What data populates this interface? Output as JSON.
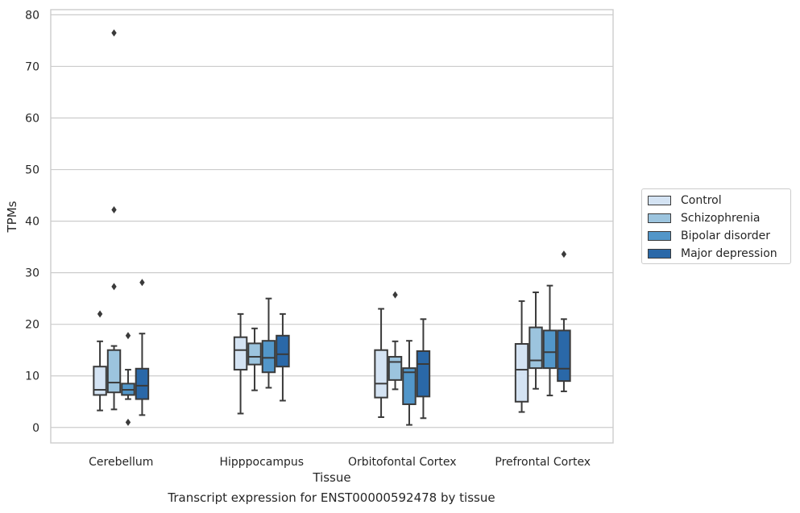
{
  "chart_data": {
    "type": "box",
    "title": "",
    "caption": "Transcript expression for ENST00000592478 by tissue",
    "xlabel": "Tissue",
    "ylabel": "TPMs",
    "ylim": [
      -3,
      81
    ],
    "yticks": [
      0,
      10,
      20,
      30,
      40,
      50,
      60,
      70,
      80
    ],
    "grid": "y",
    "legend_position": "right",
    "categories": [
      "Cerebellum",
      "Hipppocampus",
      "Orbitofontal Cortex",
      "Prefrontal Cortex"
    ],
    "series": [
      {
        "name": "Control",
        "color": "#d4e3f3",
        "boxes": [
          {
            "whislo": 3.3,
            "q1": 6.3,
            "med": 7.3,
            "q3": 11.8,
            "whishi": 16.7,
            "fliers": [
              22.0
            ]
          },
          {
            "whislo": 2.7,
            "q1": 11.2,
            "med": 15.0,
            "q3": 17.5,
            "whishi": 22.0,
            "fliers": []
          },
          {
            "whislo": 2.0,
            "q1": 5.8,
            "med": 8.5,
            "q3": 15.0,
            "whishi": 23.0,
            "fliers": []
          },
          {
            "whislo": 3.0,
            "q1": 5.0,
            "med": 11.2,
            "q3": 16.2,
            "whishi": 24.5,
            "fliers": []
          }
        ]
      },
      {
        "name": "Schizophrenia",
        "color": "#9cc4de",
        "boxes": [
          {
            "whislo": 3.5,
            "q1": 6.8,
            "med": 8.7,
            "q3": 15.0,
            "whishi": 15.8,
            "fliers": [
              76.5,
              42.2,
              27.3
            ]
          },
          {
            "whislo": 7.2,
            "q1": 12.2,
            "med": 13.7,
            "q3": 16.3,
            "whishi": 19.2,
            "fliers": []
          },
          {
            "whislo": 7.4,
            "q1": 9.2,
            "med": 12.7,
            "q3": 13.7,
            "whishi": 16.7,
            "fliers": [
              25.7
            ]
          },
          {
            "whislo": 7.5,
            "q1": 11.5,
            "med": 13.0,
            "q3": 19.4,
            "whishi": 26.2,
            "fliers": []
          }
        ]
      },
      {
        "name": "Bipolar disorder",
        "color": "#5296c9",
        "boxes": [
          {
            "whislo": 5.5,
            "q1": 6.3,
            "med": 7.3,
            "q3": 8.5,
            "whishi": 11.2,
            "fliers": [
              17.8,
              1.0
            ]
          },
          {
            "whislo": 7.7,
            "q1": 10.7,
            "med": 13.5,
            "q3": 16.8,
            "whishi": 25.0,
            "fliers": []
          },
          {
            "whislo": 0.5,
            "q1": 4.5,
            "med": 10.7,
            "q3": 11.5,
            "whishi": 16.8,
            "fliers": []
          },
          {
            "whislo": 6.2,
            "q1": 11.5,
            "med": 14.6,
            "q3": 18.8,
            "whishi": 27.5,
            "fliers": []
          }
        ]
      },
      {
        "name": "Major depression",
        "color": "#2a68a8",
        "boxes": [
          {
            "whislo": 2.4,
            "q1": 5.5,
            "med": 8.1,
            "q3": 11.4,
            "whishi": 18.2,
            "fliers": [
              28.1
            ]
          },
          {
            "whislo": 5.2,
            "q1": 11.8,
            "med": 14.2,
            "q3": 17.8,
            "whishi": 22.0,
            "fliers": []
          },
          {
            "whislo": 1.8,
            "q1": 6.0,
            "med": 12.3,
            "q3": 14.8,
            "whishi": 21.0,
            "fliers": []
          },
          {
            "whislo": 7.0,
            "q1": 9.0,
            "med": 11.4,
            "q3": 18.8,
            "whishi": 21.0,
            "fliers": [
              33.6
            ]
          }
        ]
      }
    ]
  }
}
